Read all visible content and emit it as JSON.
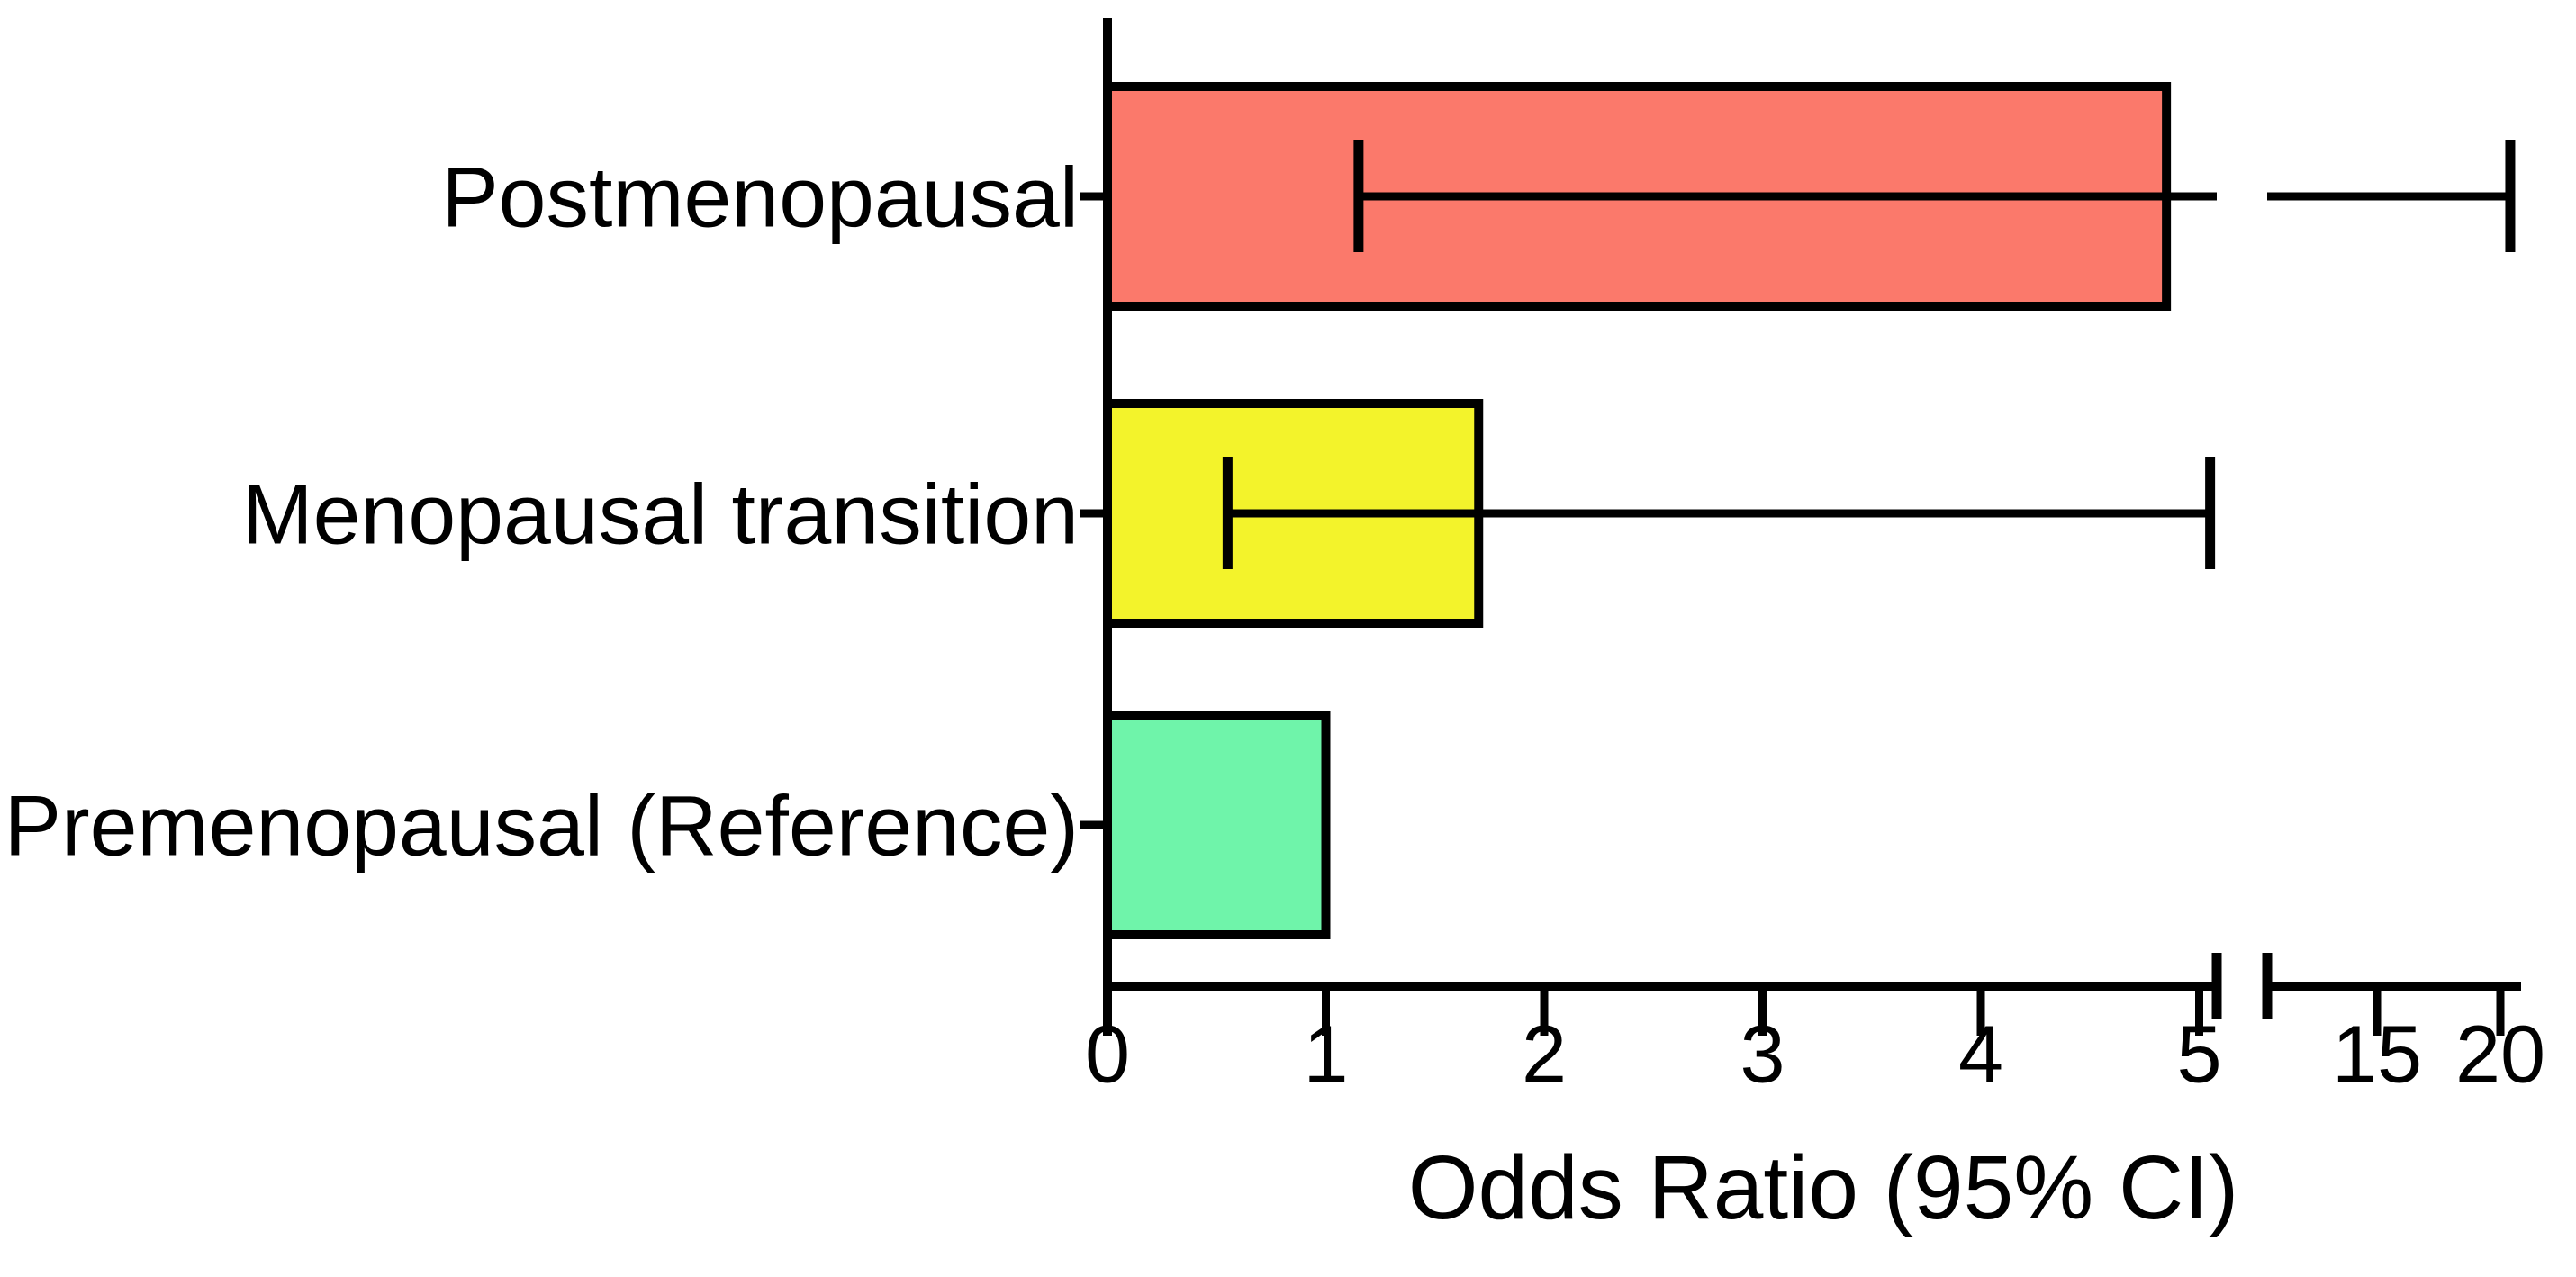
{
  "figure": {
    "background_color": "#ffffff",
    "ink_color": "#000000"
  },
  "chart_data": {
    "type": "bar",
    "orientation": "horizontal",
    "title": "",
    "xlabel": "Odds Ratio (95% CI)",
    "ylabel": "",
    "categories": [
      "Postmenopausal",
      "Menopausal transition",
      "Premenopausal (Reference)"
    ],
    "series": [
      {
        "name": "Odds Ratio",
        "values": [
          4.85,
          1.7,
          1.0
        ],
        "ci_low": [
          1.15,
          0.55,
          null
        ],
        "ci_high": [
          20.4,
          5.05,
          null
        ]
      }
    ],
    "bar_colors": [
      "#FB796B",
      "#F3F32B",
      "#6FF4AA"
    ],
    "bar_border_color": "#000000",
    "error_bar_color": "#000000",
    "axis": {
      "x_tick_values": [
        0,
        1,
        2,
        3,
        4,
        5,
        15,
        20
      ],
      "x_tick_labels": [
        "0",
        "1",
        "2",
        "3",
        "4",
        "5",
        "15",
        "20"
      ],
      "x_break_after_tick": 5,
      "x_linear_range": [
        0,
        5.1
      ],
      "x_post_break_ticks": [
        15,
        20
      ],
      "grid": false,
      "legend": "none"
    }
  }
}
